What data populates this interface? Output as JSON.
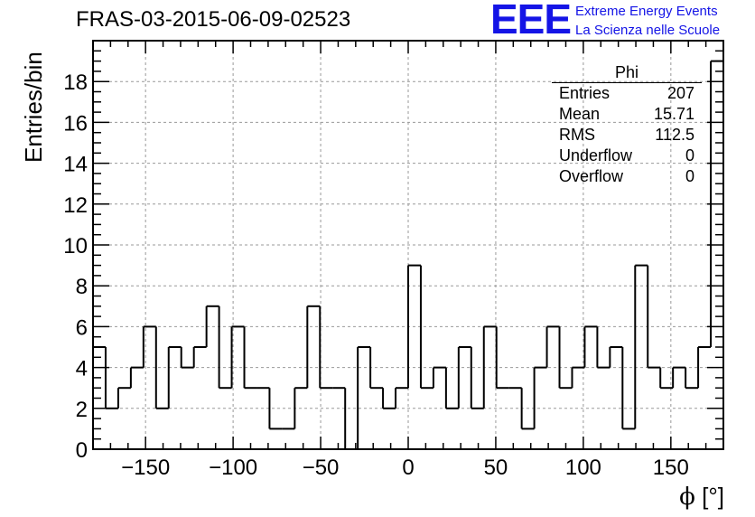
{
  "header": {
    "title": "FRAS-03-2015-06-09-02523",
    "logo_text": "EEE",
    "tagline_1": "Extreme Energy Events",
    "tagline_2": "La Scienza nelle Scuole"
  },
  "stats_box": {
    "title": "Phi",
    "rows": [
      {
        "label": "Entries",
        "value": "207"
      },
      {
        "label": "Mean",
        "value": "15.71"
      },
      {
        "label": "RMS",
        "value": "112.5"
      },
      {
        "label": "Underflow",
        "value": "0"
      },
      {
        "label": "Overflow",
        "value": "0"
      }
    ]
  },
  "colors": {
    "logo": "#1414e6",
    "histogram_line": "#000000",
    "grid": "#999999"
  },
  "chart_data": {
    "type": "histogram",
    "xlabel_symbol": "ϕ",
    "xlabel_unit": "[°]",
    "ylabel": "Entries/bin",
    "xlim": [
      -180,
      180
    ],
    "ylim": [
      0,
      20
    ],
    "bin_width": 7.2,
    "bin_low_edges": [
      -180,
      -172.8,
      -165.6,
      -158.4,
      -151.2,
      -144,
      -136.8,
      -129.6,
      -122.4,
      -115.2,
      -108,
      -100.8,
      -93.6,
      -86.4,
      -79.2,
      -72,
      -64.8,
      -57.6,
      -50.4,
      -43.2,
      -36,
      -28.8,
      -21.6,
      -14.4,
      -7.2,
      0,
      7.2,
      14.4,
      21.6,
      28.8,
      36,
      43.2,
      50.4,
      57.6,
      64.8,
      72,
      79.2,
      86.4,
      93.6,
      100.8,
      108,
      115.2,
      122.4,
      129.6,
      136.8,
      144,
      151.2,
      158.4,
      165.6,
      172.8
    ],
    "counts": [
      5,
      2,
      3,
      4,
      6,
      2,
      5,
      4,
      5,
      7,
      3,
      6,
      3,
      3,
      1,
      1,
      3,
      7,
      3,
      3,
      0,
      5,
      3,
      2,
      3,
      9,
      3,
      4,
      2,
      5,
      2,
      6,
      3,
      3,
      1,
      4,
      6,
      3,
      4,
      6,
      4,
      5,
      1,
      9,
      4,
      3,
      4,
      3,
      5,
      19
    ],
    "x_ticks": [
      -150,
      -100,
      -50,
      0,
      50,
      100,
      150
    ],
    "x_tick_labels": [
      "−150",
      "−100",
      "−50",
      "0",
      "50",
      "100",
      "150"
    ],
    "y_ticks": [
      0,
      2,
      4,
      6,
      8,
      10,
      12,
      14,
      16,
      18
    ],
    "y_tick_labels": [
      "0",
      "2",
      "4",
      "6",
      "8",
      "10",
      "12",
      "14",
      "16",
      "18"
    ],
    "grid": true,
    "legend": "stats box top-right"
  }
}
